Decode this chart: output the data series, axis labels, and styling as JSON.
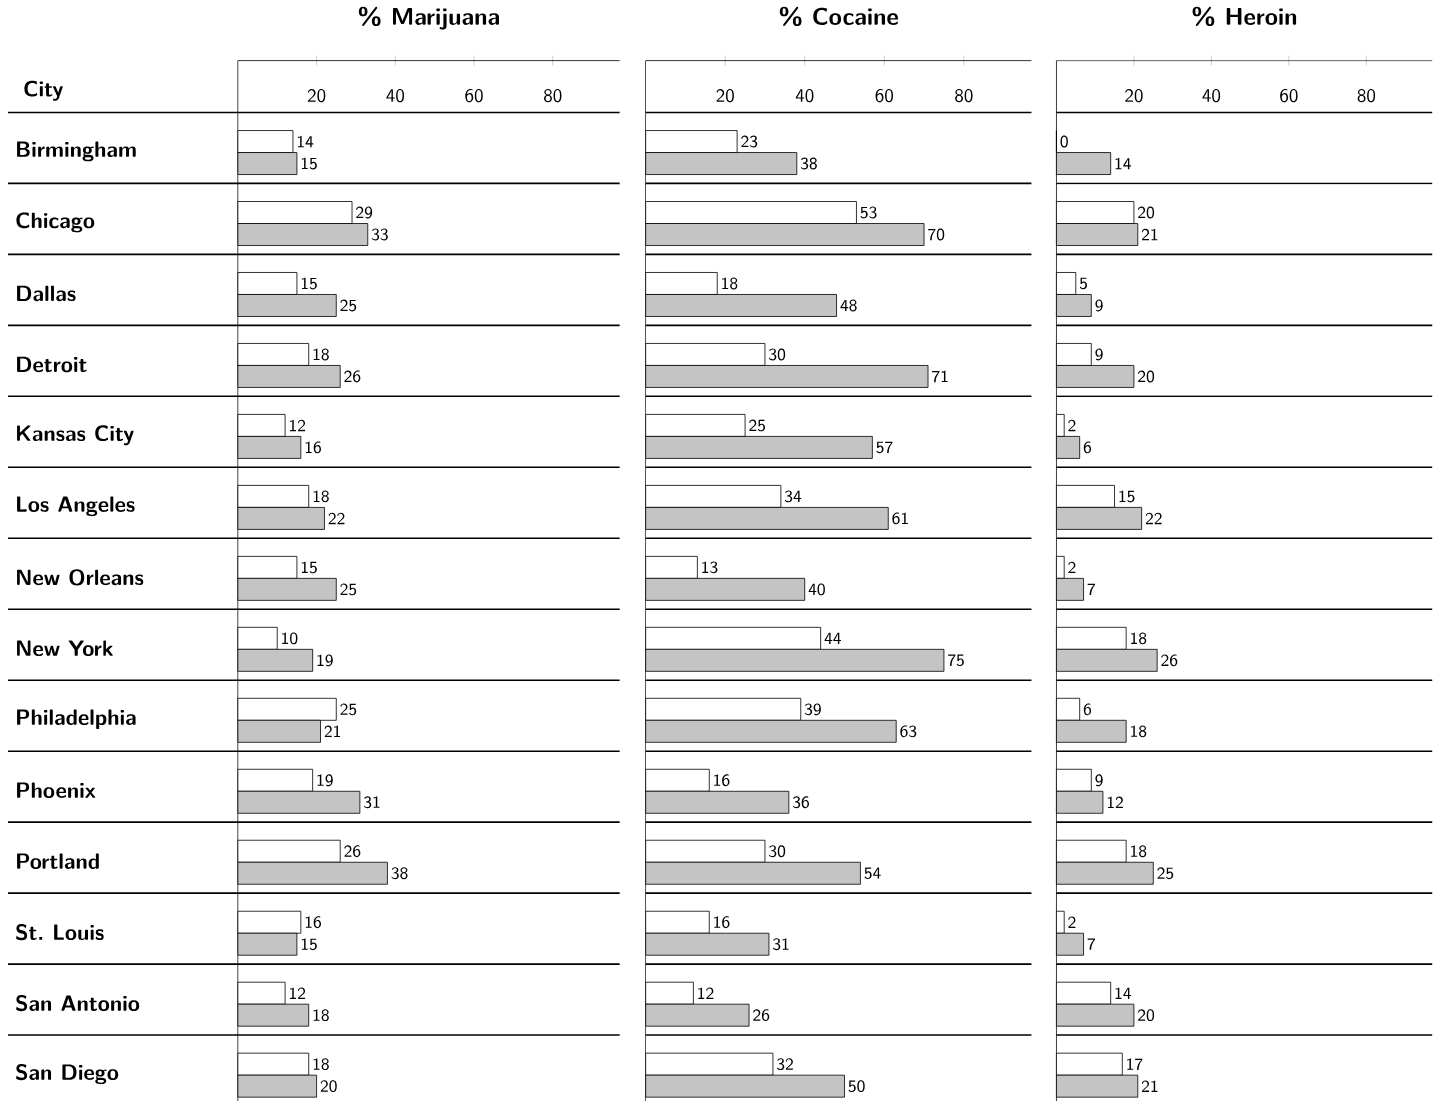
{
  "chart_data": [
    {
      "type": "bar",
      "orientation": "horizontal",
      "title": "% Marijuana",
      "ylabel": "City",
      "categories": [
        "Birmingham",
        "Chicago",
        "Dallas",
        "Detroit",
        "Kansas City",
        "Los Angeles",
        "New Orleans",
        "New York",
        "Philadelphia",
        "Phoenix",
        "Portland",
        "St. Louis",
        "San Antonio",
        "San Diego"
      ],
      "series": [
        {
          "color": "#ffffff",
          "values": [
            14,
            29,
            15,
            18,
            12,
            18,
            15,
            10,
            25,
            19,
            26,
            16,
            12,
            18
          ]
        },
        {
          "color": "#c4c4c4",
          "values": [
            15,
            33,
            25,
            26,
            16,
            22,
            25,
            19,
            21,
            31,
            38,
            15,
            18,
            20
          ]
        }
      ],
      "xlim": [
        0,
        97
      ],
      "xticks": [
        20,
        40,
        60,
        80
      ],
      "data_labels": true,
      "grid": "y"
    },
    {
      "type": "bar",
      "orientation": "horizontal",
      "title": "% Cocaine",
      "series": [
        {
          "color": "#ffffff",
          "values": [
            23,
            53,
            18,
            30,
            25,
            34,
            13,
            44,
            39,
            16,
            30,
            16,
            12,
            32
          ]
        },
        {
          "color": "#c4c4c4",
          "values": [
            38,
            70,
            48,
            71,
            57,
            61,
            40,
            75,
            63,
            36,
            54,
            31,
            26,
            50
          ]
        }
      ],
      "xlim": [
        0,
        97
      ],
      "xticks": [
        20,
        40,
        60,
        80
      ],
      "data_labels": true,
      "grid": "y",
      "tick_labels": "x"
    },
    {
      "type": "bar",
      "orientation": "horizontal",
      "title": "% Heroin",
      "series": [
        {
          "color": "#ffffff",
          "values": [
            0,
            20,
            5,
            9,
            2,
            15,
            2,
            18,
            6,
            9,
            18,
            2,
            14,
            17
          ]
        },
        {
          "color": "#c4c4c4",
          "values": [
            14,
            21,
            9,
            20,
            6,
            22,
            7,
            26,
            18,
            12,
            25,
            7,
            20,
            21
          ]
        }
      ],
      "xlim": [
        0,
        97
      ],
      "xticks": [
        20,
        40,
        60,
        80
      ],
      "data_labels": true,
      "grid": "y",
      "tick_labels": "x"
    }
  ]
}
